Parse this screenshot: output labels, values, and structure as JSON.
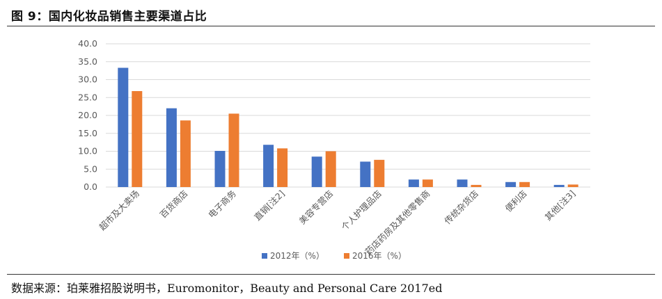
{
  "header": {
    "title": "图 9：国内化妆品销售主要渠道占比"
  },
  "footer": {
    "source": "数据来源：珀莱雅招股说明书，Euromonitor，Beauty and Personal Care 2017ed"
  },
  "colors": {
    "series1": "#4472c4",
    "series2": "#ed7d31",
    "grid": "#d9d9d9",
    "axis_text": "#595959"
  },
  "chart_data": {
    "type": "bar",
    "title": "",
    "xlabel": "",
    "ylabel": "",
    "ylim": [
      0,
      40
    ],
    "yticks": [
      "0.0",
      "5.0",
      "10.0",
      "15.0",
      "20.0",
      "25.0",
      "30.0",
      "35.0",
      "40.0"
    ],
    "grid": true,
    "legend_position": "bottom",
    "categories": [
      "超市及大卖场",
      "百货商店",
      "电子商务",
      "直销[注2]",
      "美容专营店",
      "个人护理品店",
      "药店药房及其他零售商",
      "传统杂货店",
      "便利店",
      "其他[注3]"
    ],
    "series": [
      {
        "name": "2012年（%）",
        "values": [
          33.3,
          22.0,
          10.1,
          11.8,
          8.5,
          7.1,
          2.1,
          2.1,
          1.4,
          0.6
        ]
      },
      {
        "name": "2016年（%）",
        "values": [
          26.8,
          18.6,
          20.5,
          10.8,
          10.0,
          7.6,
          2.1,
          0.6,
          1.4,
          0.7
        ]
      }
    ]
  }
}
